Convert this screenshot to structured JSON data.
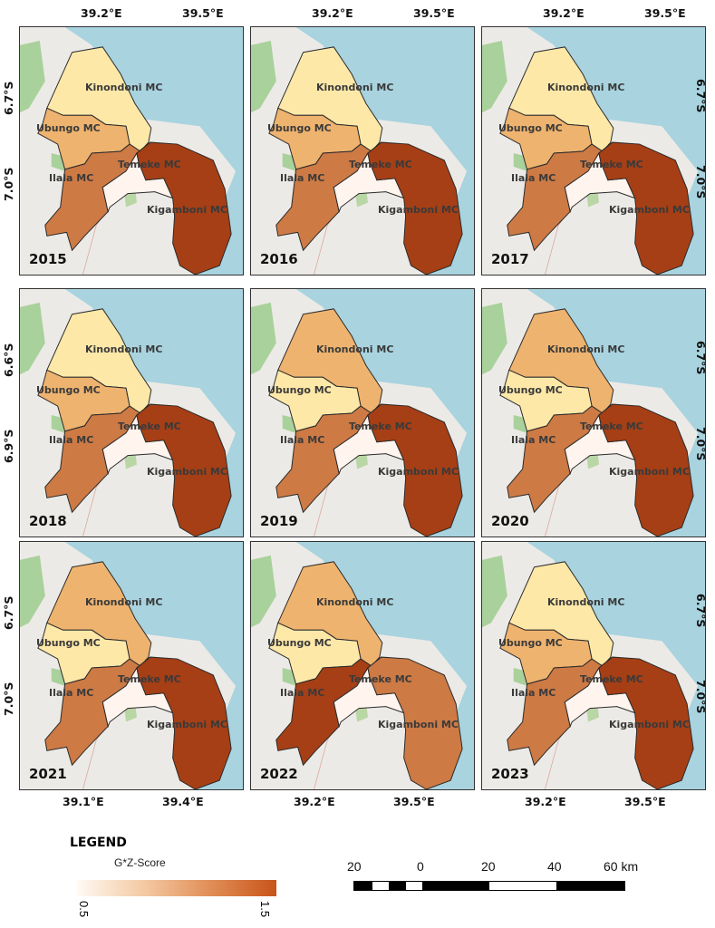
{
  "map": {
    "type": "choropleth",
    "variable": "G*Z-Score",
    "districts": [
      "Kinondoni MC",
      "Ubungo MC",
      "Ilala MC",
      "Temeke MC",
      "Kigamboni MC"
    ],
    "class_colors": {
      "c1": "#fff4ee",
      "c2": "#fde8a8",
      "c3": "#eeb36f",
      "c4": "#cd7a45",
      "c5": "#a63f15"
    },
    "panels": [
      {
        "year": "2015",
        "top_ticks": [
          "39.2°E",
          "39.5°E"
        ],
        "bottom_ticks": [],
        "left_ticks": [
          "6.7°S",
          "7.0°S"
        ],
        "right_ticks": [],
        "classes": {
          "kinondoni": "c2",
          "ubungo": "c3",
          "ilala": "c4",
          "temeke": "c1",
          "kigamboni": "c5"
        }
      },
      {
        "year": "2016",
        "top_ticks": [
          "39.2°E",
          "39.5°E"
        ],
        "bottom_ticks": [],
        "left_ticks": [],
        "right_ticks": [],
        "classes": {
          "kinondoni": "c2",
          "ubungo": "c3",
          "ilala": "c4",
          "temeke": "c1",
          "kigamboni": "c5"
        }
      },
      {
        "year": "2017",
        "top_ticks": [
          "39.2°E",
          "39.5°E"
        ],
        "bottom_ticks": [],
        "left_ticks": [],
        "right_ticks": [
          "6.7°S",
          "7.0°S"
        ],
        "classes": {
          "kinondoni": "c2",
          "ubungo": "c3",
          "ilala": "c4",
          "temeke": "c1",
          "kigamboni": "c5"
        }
      },
      {
        "year": "2018",
        "top_ticks": [],
        "bottom_ticks": [],
        "left_ticks": [
          "6.6°S",
          "6.9°S"
        ],
        "right_ticks": [],
        "classes": {
          "kinondoni": "c2",
          "ubungo": "c3",
          "ilala": "c4",
          "temeke": "c1",
          "kigamboni": "c5"
        }
      },
      {
        "year": "2019",
        "top_ticks": [],
        "bottom_ticks": [],
        "left_ticks": [],
        "right_ticks": [],
        "classes": {
          "kinondoni": "c3",
          "ubungo": "c2",
          "ilala": "c4",
          "temeke": "c1",
          "kigamboni": "c5"
        }
      },
      {
        "year": "2020",
        "top_ticks": [],
        "bottom_ticks": [],
        "left_ticks": [],
        "right_ticks": [
          "6.7°S",
          "7.0°S"
        ],
        "classes": {
          "kinondoni": "c3",
          "ubungo": "c2",
          "ilala": "c4",
          "temeke": "c1",
          "kigamboni": "c5"
        }
      },
      {
        "year": "2021",
        "top_ticks": [],
        "bottom_ticks": [
          "39.1°E",
          "39.4°E"
        ],
        "left_ticks": [
          "6.7°S",
          "7.0°S"
        ],
        "right_ticks": [],
        "classes": {
          "kinondoni": "c3",
          "ubungo": "c2",
          "ilala": "c4",
          "temeke": "c1",
          "kigamboni": "c5"
        }
      },
      {
        "year": "2022",
        "top_ticks": [],
        "bottom_ticks": [
          "39.2°E",
          "39.5°E"
        ],
        "left_ticks": [],
        "right_ticks": [],
        "classes": {
          "kinondoni": "c3",
          "ubungo": "c2",
          "ilala": "c5",
          "temeke": "c1",
          "kigamboni": "c4"
        }
      },
      {
        "year": "2023",
        "top_ticks": [],
        "bottom_ticks": [
          "39.2°E",
          "39.5°E"
        ],
        "left_ticks": [],
        "right_ticks": [
          "6.7°S",
          "7.0°S"
        ],
        "classes": {
          "kinondoni": "c2",
          "ubungo": "c3",
          "ilala": "c4",
          "temeke": "c1",
          "kigamboni": "c5"
        }
      }
    ]
  },
  "labels": {
    "kinondoni": "Kinondoni MC",
    "ubungo": "Ubungo MC",
    "ilala": "Ilala MC",
    "temeke": "Temeke MC",
    "kigamboni": "Kigamboni MC"
  },
  "legend": {
    "title": "LEGEND",
    "subtitle": "G*Z-Score",
    "min": "0.5",
    "max": "1.5",
    "ramp_start": "#fffaf4",
    "ramp_end": "#c8541a"
  },
  "scalebar": {
    "ticks": [
      "20",
      "0",
      "20",
      "40",
      "60 km"
    ]
  }
}
